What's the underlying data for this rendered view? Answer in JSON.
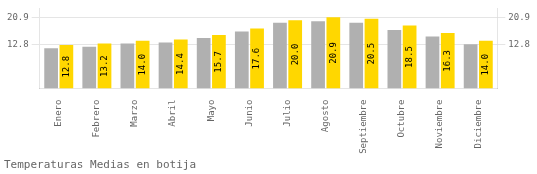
{
  "chart_data": {
    "type": "bar",
    "title": "Temperaturas Medias en botija",
    "categories": [
      "Enero",
      "Febrero",
      "Marzo",
      "Abril",
      "Mayo",
      "Junio",
      "Julio",
      "Agosto",
      "Septiembre",
      "Octubre",
      "Noviembre",
      "Diciembre"
    ],
    "series": [
      {
        "color": "#B0B0B0",
        "values": [
          11.8,
          12.3,
          13.2,
          13.5,
          14.8,
          16.7,
          19.3,
          19.7,
          19.3,
          17.2,
          15.3,
          13.0
        ]
      },
      {
        "color": "#FFD700",
        "values": [
          12.8,
          13.2,
          14.0,
          14.4,
          15.7,
          17.6,
          20.0,
          20.9,
          20.5,
          18.5,
          16.3,
          14.0
        ],
        "value_labels": [
          "12.8",
          "13.2",
          "14.0",
          "14.4",
          "15.7",
          "17.6",
          "20.0",
          "20.9",
          "20.5",
          "18.5",
          "16.3",
          "14.0"
        ],
        "data_labels": true
      }
    ],
    "ylim": [
      0,
      23.5
    ],
    "yticks": [
      12.8,
      20.9
    ],
    "y2lim": [
      0,
      23.5
    ],
    "y2ticks": [
      12.8,
      20.9
    ],
    "grid": true
  }
}
